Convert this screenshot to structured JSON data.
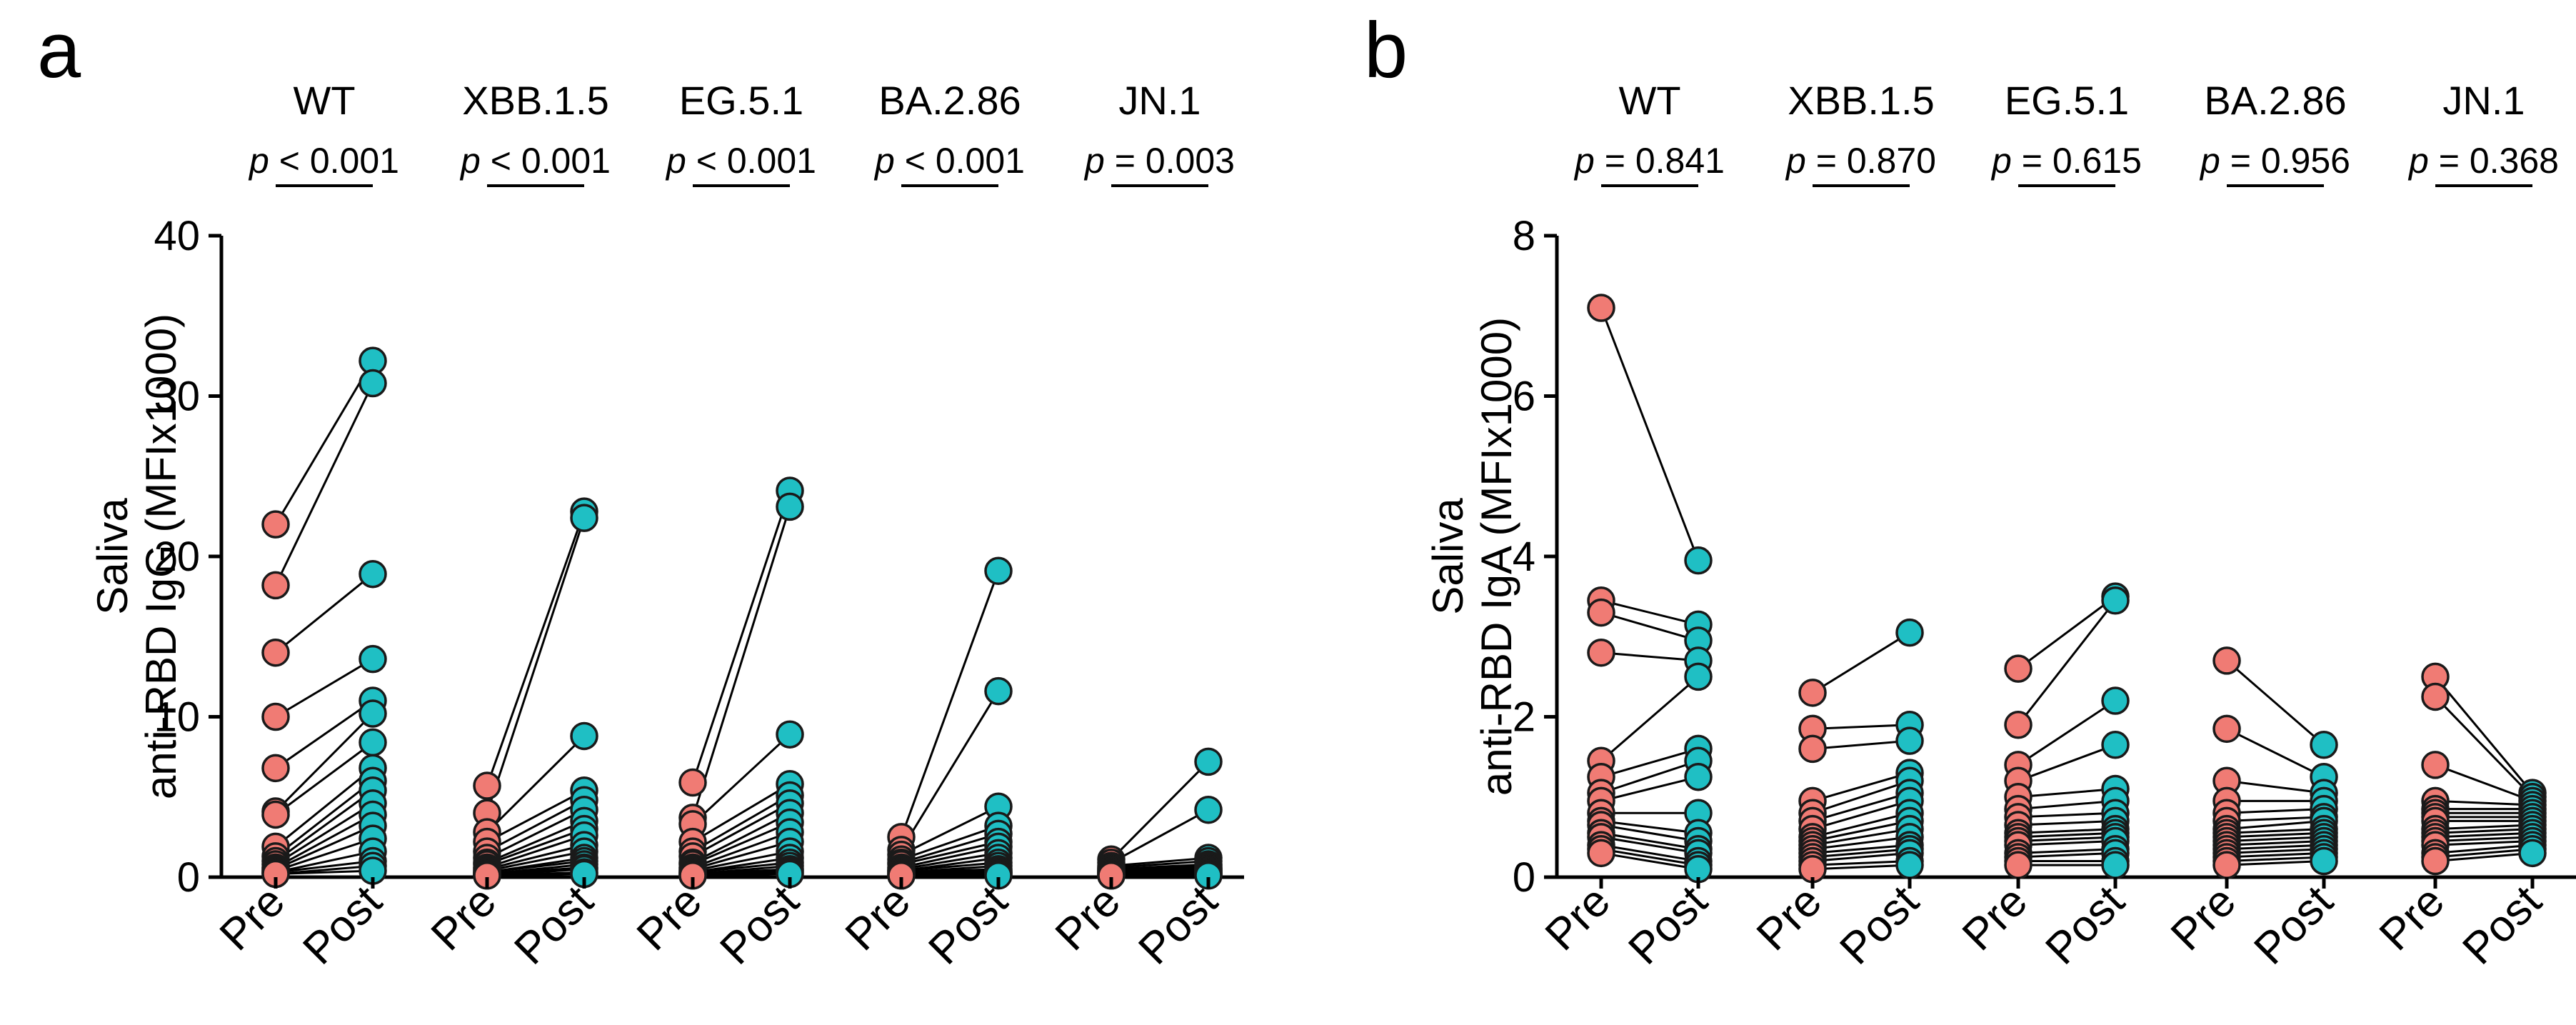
{
  "chart_data": [
    {
      "type": "scatter",
      "panel": "a",
      "ylabel_line1": "Saliva",
      "ylabel_line2": "anti-RBD IgG (MFIx1000)",
      "ylim": [
        0,
        40
      ],
      "yticks": [
        "0",
        "10",
        "20",
        "30",
        "40"
      ],
      "conditions": [
        "Pre",
        "Post"
      ],
      "colors": {
        "pre": "#F07B74",
        "post": "#1FBFC4"
      },
      "groups": [
        {
          "name": "WT",
          "p_sym": "p",
          "p_rest": " < 0.001",
          "pre": [
            22.0,
            18.2,
            14.0,
            10.0,
            6.8,
            4.1,
            3.9,
            1.9,
            1.3,
            1.0,
            0.8,
            0.6,
            0.5,
            0.4,
            0.3,
            0.3,
            0.2,
            0.2
          ],
          "post": [
            32.2,
            30.8,
            18.9,
            13.6,
            11.0,
            10.2,
            8.4,
            6.8,
            6.0,
            5.4,
            4.6,
            3.9,
            3.2,
            2.4,
            1.6,
            1.0,
            0.7,
            0.4
          ]
        },
        {
          "name": "XBB.1.5",
          "p_sym": "p",
          "p_rest": " < 0.001",
          "pre": [
            5.7,
            4.0,
            2.8,
            2.2,
            1.6,
            1.2,
            0.9,
            0.8,
            0.6,
            0.5,
            0.4,
            0.3,
            0.3,
            0.2,
            0.2,
            0.1,
            0.1,
            0.1
          ],
          "post": [
            22.8,
            22.4,
            8.8,
            5.4,
            4.8,
            4.2,
            3.5,
            3.0,
            2.6,
            2.0,
            1.6,
            1.2,
            1.0,
            0.8,
            0.6,
            0.5,
            0.3,
            0.2
          ]
        },
        {
          "name": "EG.5.1",
          "p_sym": "p",
          "p_rest": " < 0.001",
          "pre": [
            5.9,
            3.7,
            3.3,
            2.2,
            1.6,
            1.3,
            0.9,
            0.8,
            0.6,
            0.5,
            0.4,
            0.3,
            0.3,
            0.2,
            0.2,
            0.1,
            0.1,
            0.1
          ],
          "post": [
            24.1,
            23.1,
            8.9,
            5.8,
            5.1,
            4.6,
            4.0,
            3.4,
            2.8,
            2.2,
            1.6,
            1.2,
            0.9,
            0.7,
            0.5,
            0.4,
            0.3,
            0.2
          ]
        },
        {
          "name": "BA.2.86",
          "p_sym": "p",
          "p_rest": " < 0.001",
          "pre": [
            2.5,
            1.7,
            1.4,
            1.1,
            0.9,
            0.8,
            0.6,
            0.5,
            0.4,
            0.4,
            0.3,
            0.3,
            0.2,
            0.2,
            0.1,
            0.1,
            0.1,
            0.1
          ],
          "post": [
            19.1,
            11.6,
            4.4,
            3.2,
            2.7,
            2.2,
            1.9,
            1.5,
            1.2,
            0.9,
            0.7,
            0.5,
            0.4,
            0.3,
            0.3,
            0.2,
            0.2,
            0.1
          ]
        },
        {
          "name": "JN.1",
          "p_sym": "p",
          "p_rest": " = 0.003",
          "pre": [
            1.1,
            0.9,
            0.7,
            0.6,
            0.5,
            0.5,
            0.4,
            0.4,
            0.3,
            0.3,
            0.3,
            0.2,
            0.2,
            0.2,
            0.1,
            0.1,
            0.1,
            0.1
          ],
          "post": [
            7.2,
            4.2,
            1.2,
            1.0,
            0.8,
            0.7,
            0.6,
            0.5,
            0.5,
            0.4,
            0.4,
            0.3,
            0.3,
            0.2,
            0.2,
            0.2,
            0.1,
            0.1
          ]
        }
      ]
    },
    {
      "type": "scatter",
      "panel": "b",
      "ylabel_line1": "Saliva",
      "ylabel_line2": "anti-RBD IgA (MFIx1000)",
      "ylim": [
        0,
        8
      ],
      "yticks": [
        "0",
        "2",
        "4",
        "6",
        "8"
      ],
      "conditions": [
        "Pre",
        "Post"
      ],
      "colors": {
        "pre": "#F07B74",
        "post": "#1FBFC4"
      },
      "groups": [
        {
          "name": "WT",
          "p_sym": "p",
          "p_rest": " = 0.841",
          "pre": [
            7.1,
            3.45,
            3.3,
            2.8,
            1.45,
            1.25,
            1.05,
            0.95,
            0.8,
            0.7,
            0.65,
            0.55,
            0.5,
            0.4,
            0.35,
            0.3
          ],
          "post": [
            3.95,
            3.15,
            2.95,
            2.7,
            2.5,
            1.6,
            1.45,
            1.25,
            0.8,
            0.55,
            0.45,
            0.35,
            0.3,
            0.2,
            0.15,
            0.1
          ]
        },
        {
          "name": "XBB.1.5",
          "p_sym": "p",
          "p_rest": " = 0.870",
          "pre": [
            2.3,
            1.85,
            1.6,
            0.95,
            0.8,
            0.7,
            0.6,
            0.5,
            0.45,
            0.4,
            0.35,
            0.3,
            0.25,
            0.2,
            0.15,
            0.1
          ],
          "post": [
            3.05,
            1.9,
            1.7,
            1.3,
            1.2,
            1.05,
            0.95,
            0.8,
            0.7,
            0.6,
            0.5,
            0.4,
            0.35,
            0.3,
            0.2,
            0.15
          ]
        },
        {
          "name": "EG.5.1",
          "p_sym": "p",
          "p_rest": " = 0.615",
          "pre": [
            2.6,
            1.9,
            1.4,
            1.2,
            1.0,
            0.85,
            0.75,
            0.65,
            0.55,
            0.5,
            0.45,
            0.4,
            0.3,
            0.25,
            0.2,
            0.15
          ],
          "post": [
            3.5,
            3.45,
            2.2,
            1.65,
            1.1,
            0.95,
            0.8,
            0.7,
            0.6,
            0.55,
            0.5,
            0.45,
            0.35,
            0.3,
            0.2,
            0.15
          ]
        },
        {
          "name": "BA.2.86",
          "p_sym": "p",
          "p_rest": " = 0.956",
          "pre": [
            2.7,
            1.85,
            1.2,
            0.95,
            0.8,
            0.7,
            0.6,
            0.55,
            0.5,
            0.45,
            0.4,
            0.35,
            0.3,
            0.25,
            0.2,
            0.15
          ],
          "post": [
            1.65,
            1.25,
            1.05,
            0.95,
            0.85,
            0.75,
            0.7,
            0.6,
            0.55,
            0.5,
            0.45,
            0.4,
            0.35,
            0.3,
            0.25,
            0.2
          ]
        },
        {
          "name": "JN.1",
          "p_sym": "p",
          "p_rest": " = 0.368",
          "pre": [
            2.5,
            2.25,
            1.4,
            0.95,
            0.85,
            0.8,
            0.75,
            0.7,
            0.6,
            0.55,
            0.5,
            0.45,
            0.4,
            0.3,
            0.25,
            0.2
          ],
          "post": [
            1.05,
            1.0,
            0.95,
            0.9,
            0.85,
            0.8,
            0.75,
            0.7,
            0.65,
            0.6,
            0.55,
            0.5,
            0.45,
            0.4,
            0.35,
            0.3
          ]
        }
      ]
    }
  ]
}
